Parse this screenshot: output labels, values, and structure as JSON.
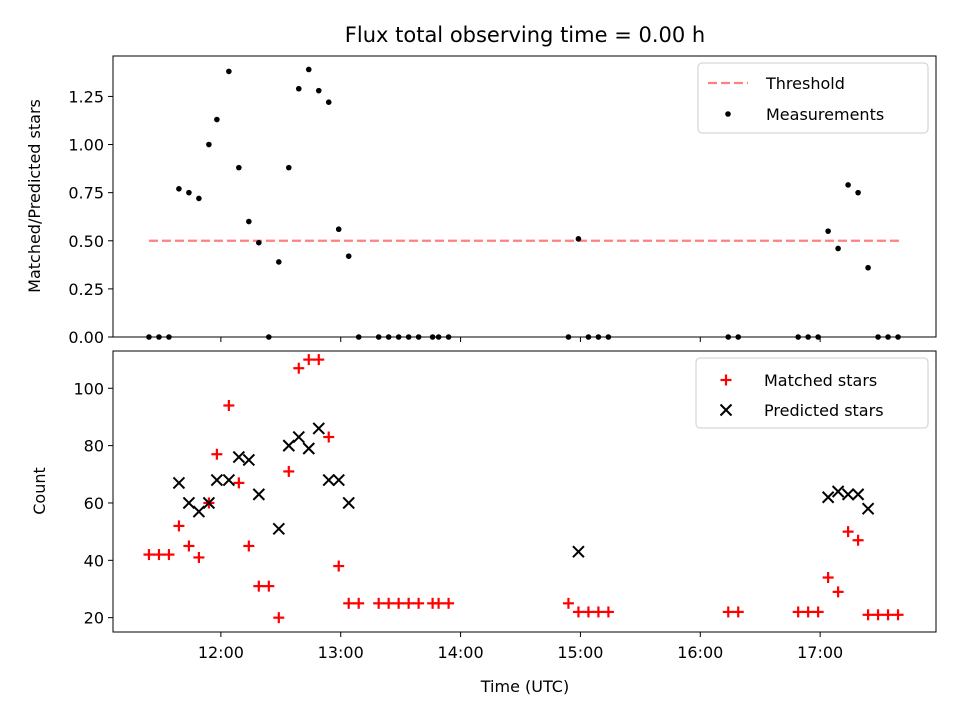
{
  "title": "Flux total observing time = 0.00 h",
  "colors": {
    "threshold": "#ff8080",
    "measurements": "#000000",
    "matched": "#ff0000",
    "predicted": "#000000"
  },
  "chart_data": [
    {
      "type": "scatter",
      "title": "Flux total observing time = 0.00 h",
      "xlabel": "",
      "ylabel": "Matched/Predicted stars",
      "xlim": [
        "11:06",
        "17:58"
      ],
      "ylim": [
        0,
        1.46
      ],
      "xticks": [
        "12:00",
        "13:00",
        "14:00",
        "15:00",
        "16:00",
        "17:00"
      ],
      "yticks": [
        "0.00",
        "0.25",
        "0.50",
        "0.75",
        "1.00",
        "1.25"
      ],
      "xtick_labels_visible": false,
      "legend_position": "upper right",
      "legend": [
        "Threshold",
        "Measurements"
      ],
      "threshold": {
        "name": "Threshold",
        "y": 0.5,
        "x_start": "11:24",
        "x_end": "17:40",
        "style": "dashed"
      },
      "series": [
        {
          "name": "Measurements",
          "marker": "dot",
          "points": [
            [
              "11:24",
              0
            ],
            [
              "11:29",
              0
            ],
            [
              "11:34",
              0
            ],
            [
              "11:39",
              0.77
            ],
            [
              "11:44",
              0.75
            ],
            [
              "11:49",
              0.72
            ],
            [
              "11:54",
              1.0
            ],
            [
              "11:58",
              1.13
            ],
            [
              "12:04",
              1.38
            ],
            [
              "12:09",
              0.88
            ],
            [
              "12:14",
              0.6
            ],
            [
              "12:19",
              0.49
            ],
            [
              "12:24",
              0
            ],
            [
              "12:29",
              0.39
            ],
            [
              "12:34",
              0.88
            ],
            [
              "12:39",
              1.29
            ],
            [
              "12:44",
              1.39
            ],
            [
              "12:49",
              1.28
            ],
            [
              "12:54",
              1.22
            ],
            [
              "12:59",
              0.56
            ],
            [
              "13:04",
              0.42
            ],
            [
              "13:09",
              0
            ],
            [
              "13:19",
              0
            ],
            [
              "13:24",
              0
            ],
            [
              "13:29",
              0
            ],
            [
              "13:34",
              0
            ],
            [
              "13:39",
              0
            ],
            [
              "13:46",
              0
            ],
            [
              "13:49",
              0
            ],
            [
              "13:54",
              0
            ],
            [
              "14:54",
              0
            ],
            [
              "14:59",
              0.51
            ],
            [
              "15:04",
              0
            ],
            [
              "15:09",
              0
            ],
            [
              "15:14",
              0
            ],
            [
              "16:14",
              0
            ],
            [
              "16:19",
              0
            ],
            [
              "16:49",
              0
            ],
            [
              "16:54",
              0
            ],
            [
              "16:59",
              0
            ],
            [
              "17:04",
              0.55
            ],
            [
              "17:09",
              0.46
            ],
            [
              "17:14",
              0.79
            ],
            [
              "17:19",
              0.75
            ],
            [
              "17:24",
              0.36
            ],
            [
              "17:29",
              0
            ],
            [
              "17:34",
              0
            ],
            [
              "17:39",
              0
            ]
          ]
        }
      ]
    },
    {
      "type": "scatter",
      "xlabel": "Time (UTC)",
      "ylabel": "Count",
      "xlim": [
        "11:06",
        "17:58"
      ],
      "ylim": [
        15,
        113
      ],
      "xticks": [
        "12:00",
        "13:00",
        "14:00",
        "15:00",
        "16:00",
        "17:00"
      ],
      "yticks": [
        "20",
        "40",
        "60",
        "80",
        "100"
      ],
      "legend_position": "upper right",
      "legend": [
        "Matched stars",
        "Predicted stars"
      ],
      "series": [
        {
          "name": "Matched stars",
          "marker": "plus",
          "points": [
            [
              "11:24",
              42
            ],
            [
              "11:29",
              42
            ],
            [
              "11:34",
              42
            ],
            [
              "11:39",
              52
            ],
            [
              "11:44",
              45
            ],
            [
              "11:49",
              41
            ],
            [
              "11:54",
              60
            ],
            [
              "11:58",
              77
            ],
            [
              "12:04",
              94
            ],
            [
              "12:09",
              67
            ],
            [
              "12:14",
              45
            ],
            [
              "12:19",
              31
            ],
            [
              "12:24",
              31
            ],
            [
              "12:29",
              20
            ],
            [
              "12:34",
              71
            ],
            [
              "12:39",
              107
            ],
            [
              "12:44",
              110
            ],
            [
              "12:49",
              110
            ],
            [
              "12:54",
              83
            ],
            [
              "12:59",
              38
            ],
            [
              "13:04",
              25
            ],
            [
              "13:09",
              25
            ],
            [
              "13:19",
              25
            ],
            [
              "13:24",
              25
            ],
            [
              "13:29",
              25
            ],
            [
              "13:34",
              25
            ],
            [
              "13:39",
              25
            ],
            [
              "13:46",
              25
            ],
            [
              "13:49",
              25
            ],
            [
              "13:54",
              25
            ],
            [
              "14:54",
              25
            ],
            [
              "14:59",
              22
            ],
            [
              "15:04",
              22
            ],
            [
              "15:09",
              22
            ],
            [
              "15:14",
              22
            ],
            [
              "16:14",
              22
            ],
            [
              "16:19",
              22
            ],
            [
              "16:49",
              22
            ],
            [
              "16:54",
              22
            ],
            [
              "16:59",
              22
            ],
            [
              "17:04",
              34
            ],
            [
              "17:09",
              29
            ],
            [
              "17:14",
              50
            ],
            [
              "17:19",
              47
            ],
            [
              "17:24",
              21
            ],
            [
              "17:29",
              21
            ],
            [
              "17:34",
              21
            ],
            [
              "17:39",
              21
            ]
          ]
        },
        {
          "name": "Predicted stars",
          "marker": "x",
          "points": [
            [
              "11:39",
              67
            ],
            [
              "11:44",
              60
            ],
            [
              "11:49",
              57
            ],
            [
              "11:54",
              60
            ],
            [
              "11:58",
              68
            ],
            [
              "12:04",
              68
            ],
            [
              "12:09",
              76
            ],
            [
              "12:14",
              75
            ],
            [
              "12:19",
              63
            ],
            [
              "12:29",
              51
            ],
            [
              "12:34",
              80
            ],
            [
              "12:39",
              83
            ],
            [
              "12:44",
              79
            ],
            [
              "12:49",
              86
            ],
            [
              "12:54",
              68
            ],
            [
              "12:59",
              68
            ],
            [
              "13:04",
              60
            ],
            [
              "14:59",
              43
            ],
            [
              "17:04",
              62
            ],
            [
              "17:09",
              64
            ],
            [
              "17:14",
              63
            ],
            [
              "17:19",
              63
            ],
            [
              "17:24",
              58
            ]
          ]
        }
      ]
    }
  ]
}
